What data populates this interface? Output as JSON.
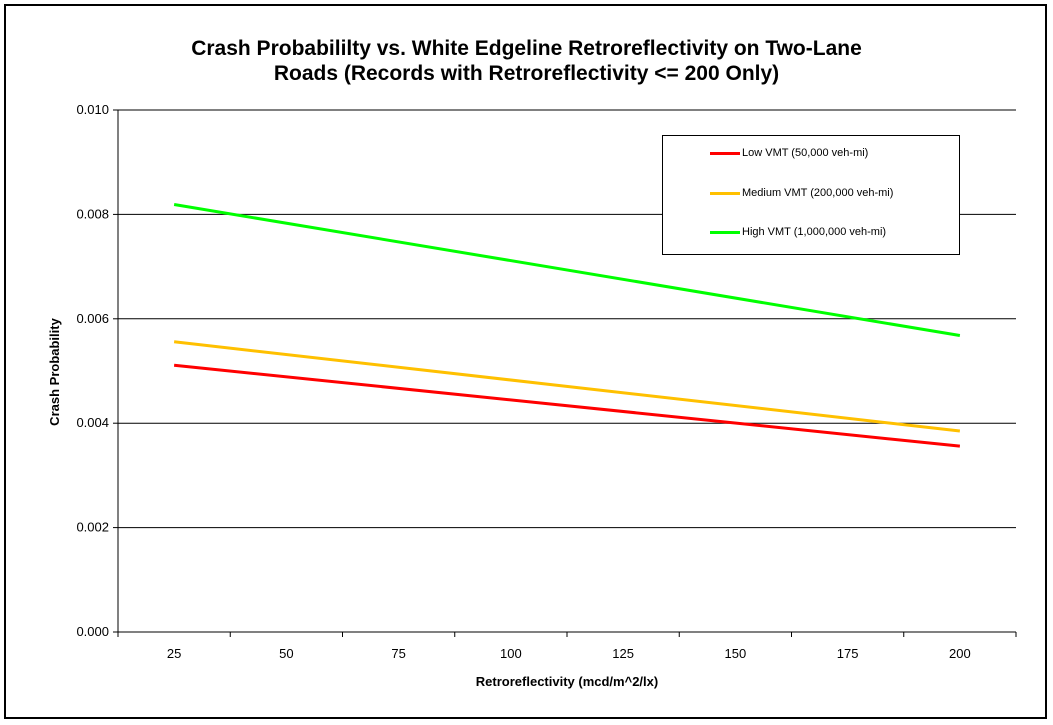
{
  "chart_data": {
    "type": "line",
    "title": "Crash Probabililty vs. White Edgeline Retroreflectivity on Two-Lane\nRoads (Records with Retroreflectivity <= 200 Only)",
    "xlabel": "Retroreflectivity (mcd/m^2/lx)",
    "ylabel": "Crash Probability",
    "categories": [
      "25",
      "50",
      "75",
      "100",
      "125",
      "150",
      "175",
      "200"
    ],
    "yticks": [
      "0.000",
      "0.002",
      "0.004",
      "0.006",
      "0.008",
      "0.010"
    ],
    "ylim": [
      0,
      0.01
    ],
    "grid": true,
    "legend_position": "top-right",
    "series": [
      {
        "name": "Low VMT (50,000 veh-mi)",
        "color": "#ff0000",
        "x": [
          25,
          200
        ],
        "y": [
          0.00511,
          0.00356
        ]
      },
      {
        "name": "Medium VMT (200,000 veh-mi)",
        "color": "#ffc000",
        "x": [
          25,
          200
        ],
        "y": [
          0.00556,
          0.00385
        ]
      },
      {
        "name": "High VMT (1,000,000 veh-mi)",
        "color": "#00ff00",
        "x": [
          25,
          200
        ],
        "y": [
          0.00819,
          0.00568
        ]
      }
    ]
  }
}
